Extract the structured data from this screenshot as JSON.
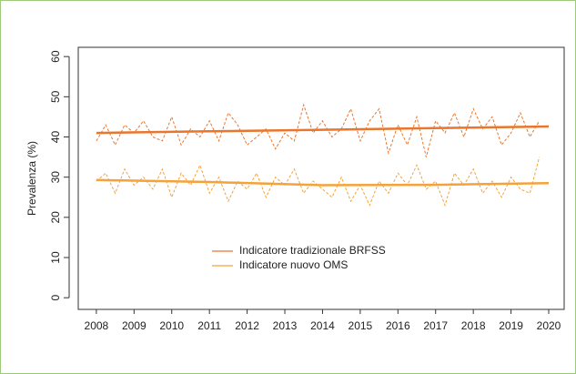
{
  "chart_data": {
    "type": "line",
    "ylabel": "Prevalenza (%)",
    "xlim": [
      2007.52,
      2020.41
    ],
    "ylim": [
      -2.9,
      62.3
    ],
    "xticks": [
      2008,
      2009,
      2010,
      2011,
      2012,
      2013,
      2014,
      2015,
      2016,
      2017,
      2018,
      2019,
      2020
    ],
    "yticks": [
      0,
      10,
      20,
      30,
      40,
      50,
      60
    ],
    "series": [
      {
        "name": "Indicatore tradizionale BRFSS",
        "color": "#e8762d",
        "x": [
          2008,
          2008.25,
          2008.5,
          2008.75,
          2009,
          2009.25,
          2009.5,
          2009.75,
          2010,
          2010.25,
          2010.5,
          2010.75,
          2011,
          2011.25,
          2011.5,
          2011.75,
          2012,
          2012.25,
          2012.5,
          2012.75,
          2013,
          2013.25,
          2013.5,
          2013.75,
          2014,
          2014.25,
          2014.5,
          2014.75,
          2015,
          2015.25,
          2015.5,
          2015.75,
          2016,
          2016.25,
          2016.5,
          2016.75,
          2017,
          2017.25,
          2017.5,
          2017.75,
          2018,
          2018.25,
          2018.5,
          2018.75,
          2019,
          2019.25,
          2019.5,
          2019.75
        ],
        "values": [
          39,
          43,
          38,
          43,
          41,
          44,
          40,
          39,
          45,
          38,
          42,
          40,
          44,
          39,
          46,
          43,
          38,
          40,
          42,
          37,
          41,
          39,
          48,
          41,
          44,
          40,
          42,
          47,
          39,
          44,
          47,
          36,
          43,
          38,
          45,
          35,
          44,
          41,
          46,
          40,
          47,
          42,
          45,
          38,
          41,
          46,
          40,
          44
        ],
        "trend": {
          "x": [
            2008,
            2011,
            2014,
            2017,
            2020
          ],
          "values": [
            41.0,
            41.4,
            41.8,
            42.2,
            42.6
          ]
        }
      },
      {
        "name": "Indicatore nuovo OMS",
        "color": "#f5a23a",
        "x": [
          2008,
          2008.25,
          2008.5,
          2008.75,
          2009,
          2009.25,
          2009.5,
          2009.75,
          2010,
          2010.25,
          2010.5,
          2010.75,
          2011,
          2011.25,
          2011.5,
          2011.75,
          2012,
          2012.25,
          2012.5,
          2012.75,
          2013,
          2013.25,
          2013.5,
          2013.75,
          2014,
          2014.25,
          2014.5,
          2014.75,
          2015,
          2015.25,
          2015.5,
          2015.75,
          2016,
          2016.25,
          2016.5,
          2016.75,
          2017,
          2017.25,
          2017.5,
          2017.75,
          2018,
          2018.25,
          2018.5,
          2018.75,
          2019,
          2019.25,
          2019.5,
          2019.75
        ],
        "values": [
          29,
          31,
          26,
          32,
          28,
          30,
          27,
          32,
          25,
          31,
          28,
          33,
          26,
          30,
          24,
          29,
          27,
          31,
          25,
          30,
          28,
          32,
          26,
          29,
          27,
          25,
          30,
          24,
          28,
          23,
          29,
          26,
          31,
          28,
          33,
          27,
          29,
          23,
          31,
          28,
          32,
          26,
          29,
          25,
          30,
          27,
          26,
          35
        ],
        "trend": {
          "x": [
            2008,
            2011,
            2014,
            2017,
            2020
          ],
          "values": [
            29.3,
            28.8,
            28.0,
            28.1,
            28.5
          ]
        }
      }
    ]
  }
}
